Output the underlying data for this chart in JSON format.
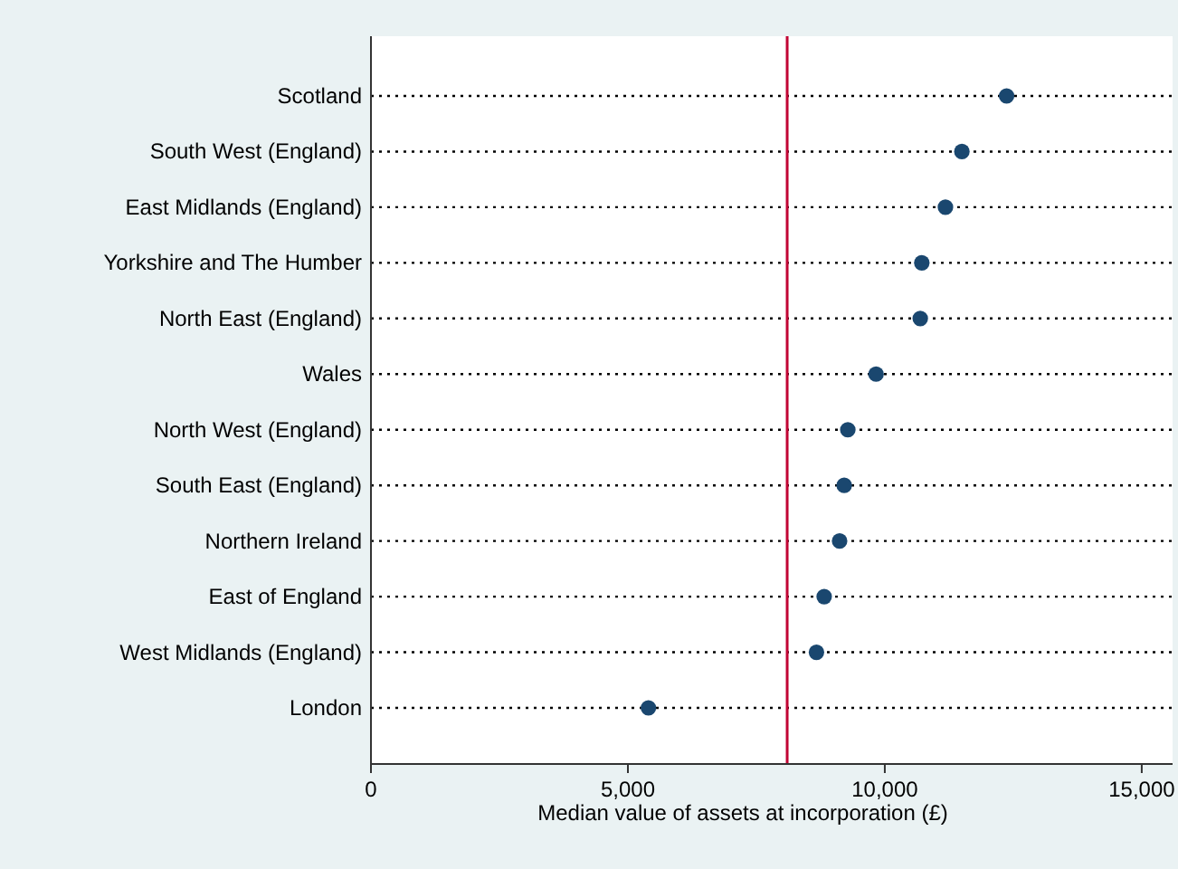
{
  "chart_data": {
    "type": "scatter",
    "orientation": "horizontal",
    "xlabel": "Median value of assets at incorporation (£)",
    "categories": [
      "Scotland",
      "South West (England)",
      "East Midlands (England)",
      "Yorkshire and The Humber",
      "North East (England)",
      "Wales",
      "North West (England)",
      "South East (England)",
      "Northern Ireland",
      "East of England",
      "West Midlands (England)",
      "London"
    ],
    "values": [
      12370,
      11500,
      11180,
      10720,
      10690,
      9830,
      9280,
      9210,
      9120,
      8820,
      8670,
      5400
    ],
    "color": "#1a476f",
    "marker": "circle",
    "grid": "y",
    "line_style": "dotted",
    "xlim": [
      0,
      15600
    ],
    "xticks": [
      0,
      {
        "value": 5000,
        "label": "5,000"
      },
      {
        "value": 10000,
        "label": "10,000"
      },
      {
        "value": 15000,
        "label": "15,000"
      }
    ],
    "ref_lines": [
      {
        "axis": "x",
        "value": 8100,
        "color": "#c10534"
      }
    ]
  }
}
